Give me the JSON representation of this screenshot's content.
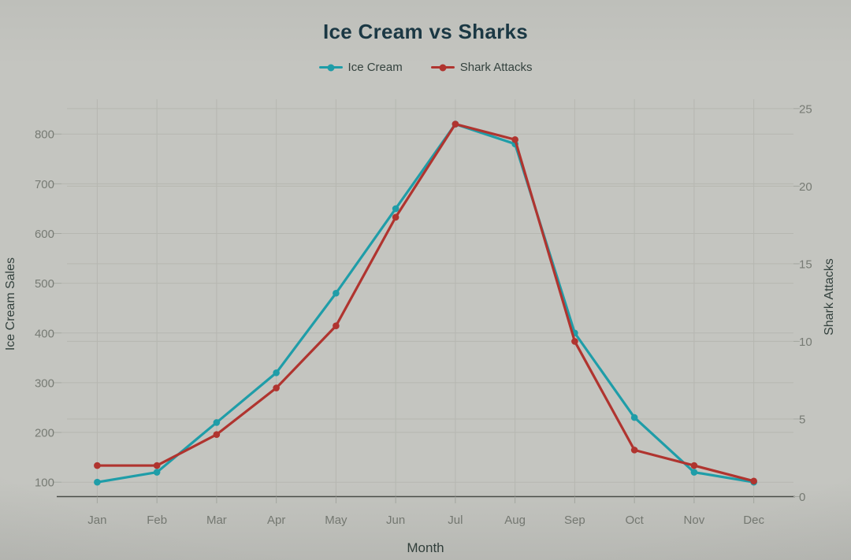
{
  "chart": {
    "title": "Ice Cream vs Sharks"
  },
  "chart_data": {
    "type": "line",
    "title": "Ice Cream vs Sharks",
    "categories": [
      "Jan",
      "Feb",
      "Mar",
      "Apr",
      "May",
      "Jun",
      "Jul",
      "Aug",
      "Sep",
      "Oct",
      "Nov",
      "Dec"
    ],
    "series": [
      {
        "name": "Ice Cream",
        "axis": "left",
        "color": "#1f9da8",
        "values": [
          100,
          120,
          220,
          320,
          480,
          650,
          820,
          780,
          400,
          230,
          120,
          100
        ]
      },
      {
        "name": "Shark Attacks",
        "axis": "right",
        "color": "#b0342f",
        "values": [
          2,
          2,
          4,
          7,
          11,
          18,
          24,
          23,
          10,
          3,
          2,
          1
        ]
      }
    ],
    "xlabel": "Month",
    "ylabel_left": "Ice Cream Sales",
    "ylabel_right": "Shark Attacks",
    "left_ticks": [
      100,
      200,
      300,
      400,
      500,
      600,
      700,
      800
    ],
    "right_ticks": [
      0,
      5,
      10,
      15,
      20,
      25
    ],
    "ylim_left": [
      71,
      870
    ],
    "ylim_right": [
      0,
      25.6
    ],
    "grid": true,
    "legend_position": "top-center"
  },
  "colors": {
    "background": "#c4c5c0",
    "title": "#1b3945",
    "axis_title": "#34423e",
    "legend_text": "#34423e",
    "tick_label": "#777b74",
    "grid": "#b6b7b1",
    "axis_line": "#4a4e49",
    "tick_mark": "#a5a8a1"
  }
}
